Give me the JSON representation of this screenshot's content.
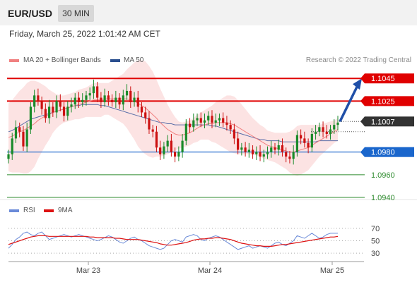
{
  "header": {
    "pair": "EUR/USD",
    "timeframe": "30 MIN"
  },
  "datetime": "Friday, March 25, 2022 1:01:42 AM CET",
  "legend": {
    "ma20_bb": "MA 20 + Bollinger Bands",
    "ma50": "MA 50",
    "rsi": "RSI",
    "rsi_ma": "9MA"
  },
  "research": "Research © 2022 Trading Central",
  "colors": {
    "resistance": "#e00000",
    "support": "#1a66cc",
    "target_green": "#2e8b2e",
    "current": "#333333",
    "bull_candle": "#1a8a2a",
    "bear_candle": "#cc1111",
    "bollinger_fill": "#fbdada",
    "ma20": "#f08080",
    "ma50": "#5a6ea8",
    "arrow": "#1f4fa8",
    "rsi": "#6a8ad8",
    "rsi_ma": "#dd1111"
  },
  "chart_data": {
    "type": "candlestick",
    "y_range": [
      1.0935,
      1.1052
    ],
    "levels": [
      {
        "value": 1.1045,
        "label": "1.1045",
        "kind": "resistance"
      },
      {
        "value": 1.1025,
        "label": "1.1025",
        "kind": "resistance"
      },
      {
        "value": 1.1007,
        "label": "1.1007",
        "kind": "current"
      },
      {
        "value": 1.098,
        "label": "1.0980",
        "kind": "support"
      },
      {
        "value": 1.096,
        "label": "1.0960",
        "kind": "target"
      },
      {
        "value": 1.094,
        "label": "1.0940",
        "kind": "target"
      }
    ],
    "x_ticks": [
      "Mar 23",
      "Mar 24",
      "Mar 25"
    ],
    "close": [
      1.0978,
      1.0992,
      1.1002,
      1.0998,
      1.0985,
      1.1,
      1.102,
      1.103,
      1.1025,
      1.1018,
      1.101,
      1.102,
      1.1015,
      1.1025,
      1.102,
      1.1012,
      1.102,
      1.1022,
      1.1028,
      1.1024,
      1.1026,
      1.103,
      1.1032,
      1.1038,
      1.1028,
      1.1024,
      1.103,
      1.1026,
      1.1024,
      1.1028,
      1.1022,
      1.103,
      1.1034,
      1.1024,
      1.1028,
      1.102,
      1.1015,
      1.101,
      1.1,
      1.0998,
      1.0984,
      1.0978,
      1.0985,
      1.099,
      1.098,
      1.0976,
      1.098,
      1.099,
      1.1005,
      1.1002,
      1.1008,
      1.101,
      1.1006,
      1.1008,
      1.1012,
      1.1006,
      1.1008,
      1.101,
      1.1006,
      1.1004,
      1.1,
      1.0992,
      1.0982,
      1.0984,
      1.098,
      1.0982,
      1.0978,
      1.098,
      1.0976,
      1.0978,
      1.098,
      1.0984,
      1.0982,
      1.0986,
      1.098,
      1.0976,
      1.0974,
      1.098,
      1.0995,
      1.0992,
      1.0988,
      1.0984,
      1.0996,
      1.0998,
      1.1002,
      1.0998,
      1.0996,
      1.1,
      1.1004,
      1.1006
    ],
    "ma20": [
      1.0993,
      1.0994,
      1.0996,
      1.0998,
      1.0999,
      1.1001,
      1.1003,
      1.1005,
      1.1008,
      1.101,
      1.1012,
      1.1013,
      1.1015,
      1.1016,
      1.1017,
      1.1018,
      1.1019,
      1.102,
      1.1021,
      1.1022,
      1.1023,
      1.1024,
      1.1025,
      1.1026,
      1.1026,
      1.1026,
      1.1027,
      1.1027,
      1.1027,
      1.1027,
      1.1027,
      1.1027,
      1.1027,
      1.1026,
      1.1025,
      1.1023,
      1.1021,
      1.1019,
      1.1016,
      1.1013,
      1.101,
      1.1006,
      1.1003,
      1.1,
      1.0998,
      1.0996,
      1.0995,
      1.0995,
      1.0996,
      1.0997,
      1.0999,
      1.1001,
      1.1003,
      1.1004,
      1.1005,
      1.1005,
      1.1006,
      1.1006,
      1.1006,
      1.1006,
      1.1005,
      1.1004,
      1.1002,
      1.1,
      1.0998,
      1.0996,
      1.0994,
      1.0992,
      1.099,
      1.0988,
      1.0986,
      1.0985,
      1.0984,
      1.0983,
      1.0982,
      1.0981,
      1.098,
      1.098,
      1.0981,
      1.0982,
      1.0983,
      1.0984,
      1.0986,
      1.0988,
      1.099,
      1.0992,
      1.0994,
      1.0996,
      1.0998,
      1.1
    ],
    "bb_width": [
      0.003,
      0.0032,
      0.0034,
      0.0036,
      0.0038,
      0.004,
      0.004,
      0.0038,
      0.0034,
      0.003,
      0.0026,
      0.0022,
      0.0018,
      0.0015,
      0.0013,
      0.0012,
      0.0012,
      0.0012,
      0.0012,
      0.0013,
      0.0013,
      0.0013,
      0.0014,
      0.0015,
      0.0015,
      0.0015,
      0.0014,
      0.0014,
      0.0016,
      0.0018,
      0.002,
      0.0022,
      0.0026,
      0.003,
      0.0034,
      0.0038,
      0.004,
      0.0041,
      0.004,
      0.0038,
      0.0034,
      0.003,
      0.0026,
      0.0022,
      0.0018,
      0.0015,
      0.0012,
      0.0011,
      0.0011,
      0.0011,
      0.0011,
      0.0012,
      0.0012,
      0.0013,
      0.0014,
      0.0016,
      0.0018,
      0.002,
      0.0022,
      0.0024,
      0.0025,
      0.0025,
      0.0024,
      0.0022,
      0.002,
      0.0018,
      0.0016,
      0.0015,
      0.0014,
      0.0014,
      0.0013,
      0.0013,
      0.0013,
      0.0014,
      0.0015,
      0.0016,
      0.0018,
      0.002,
      0.0022,
      0.0022,
      0.0021,
      0.002,
      0.0018,
      0.0016,
      0.0014,
      0.0013,
      0.0012,
      0.0011,
      0.001,
      0.001
    ],
    "ma50": [
      1.0998,
      1.0999,
      1.1001,
      1.1003,
      1.1005,
      1.1007,
      1.1009,
      1.101,
      1.1011,
      1.1012,
      1.1013,
      1.1014,
      1.1015,
      1.1016,
      1.1017,
      1.1018,
      1.1019,
      1.102,
      1.1021,
      1.1021,
      1.1022,
      1.1022,
      1.1022,
      1.1022,
      1.1022,
      1.1021,
      1.1021,
      1.102,
      1.1019,
      1.1018,
      1.1017,
      1.1016,
      1.1015,
      1.1014,
      1.1013,
      1.1012,
      1.1011,
      1.101,
      1.1009,
      1.1008,
      1.1007,
      1.1006,
      1.1006,
      1.1005,
      1.1005,
      1.1004,
      1.1004,
      1.1004,
      1.1004,
      1.1004,
      1.1004,
      1.1004,
      1.1004,
      1.1004,
      1.1004,
      1.1003,
      1.1003,
      1.1002,
      1.1001,
      1.1,
      1.0999,
      1.0998,
      1.0997,
      1.0996,
      1.0995,
      1.0994,
      1.0993,
      1.0992,
      1.0991,
      1.0991,
      1.099,
      1.099,
      1.099,
      1.099,
      1.0989,
      1.0989,
      1.0989,
      1.0989,
      1.0989,
      1.0989,
      1.0989,
      1.0989,
      1.0989,
      1.0989,
      1.099,
      1.099,
      1.099,
      1.099,
      1.099,
      1.099
    ],
    "forecast_arrow": {
      "from": 1.1007,
      "to": 1.1045
    },
    "rsi": {
      "y_ticks": [
        "70",
        "50",
        "30"
      ],
      "range": [
        20,
        80
      ],
      "rsi": [
        38,
        44,
        52,
        56,
        62,
        64,
        60,
        58,
        62,
        64,
        58,
        52,
        54,
        56,
        58,
        60,
        58,
        56,
        58,
        60,
        58,
        56,
        54,
        52,
        50,
        52,
        55,
        58,
        56,
        52,
        48,
        46,
        50,
        54,
        56,
        52,
        50,
        46,
        42,
        40,
        38,
        36,
        38,
        44,
        50,
        52,
        50,
        48,
        56,
        58,
        60,
        58,
        52,
        50,
        54,
        56,
        58,
        56,
        52,
        48,
        44,
        40,
        36,
        38,
        40,
        42,
        38,
        40,
        42,
        40,
        38,
        42,
        46,
        48,
        44,
        42,
        46,
        50,
        58,
        56,
        54,
        58,
        62,
        58,
        54,
        56,
        60,
        62,
        62,
        62
      ],
      "ma": [
        44,
        46,
        48,
        50,
        52,
        54,
        56,
        57,
        58,
        58,
        58,
        57,
        57,
        57,
        57,
        57,
        57,
        57,
        57,
        57,
        57,
        57,
        56,
        56,
        55,
        55,
        55,
        55,
        55,
        54,
        54,
        53,
        52,
        52,
        52,
        52,
        51,
        50,
        49,
        48,
        47,
        45,
        44,
        43,
        43,
        44,
        45,
        46,
        47,
        49,
        51,
        52,
        53,
        53,
        54,
        54,
        55,
        55,
        54,
        53,
        52,
        50,
        48,
        46,
        45,
        44,
        43,
        42,
        42,
        41,
        41,
        41,
        42,
        43,
        44,
        44,
        45,
        46,
        47,
        48,
        49,
        50,
        51,
        52,
        53,
        54,
        55,
        56,
        56,
        57
      ]
    }
  }
}
